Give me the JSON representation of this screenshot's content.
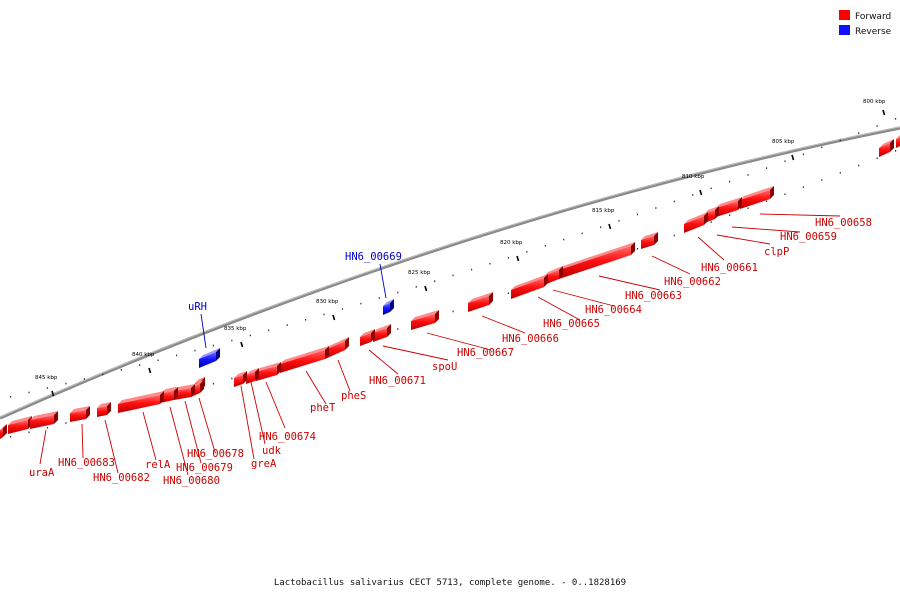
{
  "legend": {
    "forward_label": "Forward",
    "reverse_label": "Reverse",
    "forward_color": "#ff0000",
    "reverse_color": "#1010ff"
  },
  "caption": "Lactobacillus salivarius CECT 5713, complete genome. - 0..1828169",
  "ticks": [
    {
      "kbp": 800,
      "label": "800 kbp"
    },
    {
      "kbp": 805,
      "label": "805 kbp"
    },
    {
      "kbp": 810,
      "label": "810 kbp"
    },
    {
      "kbp": 815,
      "label": "815 kbp"
    },
    {
      "kbp": 820,
      "label": "820 kbp"
    },
    {
      "kbp": 825,
      "label": "825 kbp"
    },
    {
      "kbp": 830,
      "label": "830 kbp"
    },
    {
      "kbp": 835,
      "label": "835 kbp"
    },
    {
      "kbp": 840,
      "label": "840 kbp"
    },
    {
      "kbp": 845,
      "label": "845 kbp"
    }
  ],
  "genes": [
    {
      "name": "HN6_00658",
      "strand": "forward"
    },
    {
      "name": "HN6_00659",
      "strand": "forward"
    },
    {
      "name": "clpP",
      "strand": "forward"
    },
    {
      "name": "HN6_00661",
      "strand": "forward"
    },
    {
      "name": "HN6_00662",
      "strand": "forward"
    },
    {
      "name": "HN6_00663",
      "strand": "forward"
    },
    {
      "name": "HN6_00664",
      "strand": "forward"
    },
    {
      "name": "HN6_00665",
      "strand": "forward"
    },
    {
      "name": "HN6_00666",
      "strand": "forward"
    },
    {
      "name": "HN6_00667",
      "strand": "forward"
    },
    {
      "name": "spoU",
      "strand": "forward"
    },
    {
      "name": "HN6_00669",
      "strand": "reverse"
    },
    {
      "name": "HN6_00671",
      "strand": "forward"
    },
    {
      "name": "pheS",
      "strand": "forward"
    },
    {
      "name": "pheT",
      "strand": "forward"
    },
    {
      "name": "HN6_00674",
      "strand": "forward"
    },
    {
      "name": "udk",
      "strand": "forward"
    },
    {
      "name": "greA",
      "strand": "forward"
    },
    {
      "name": "HN6_00678",
      "strand": "forward"
    },
    {
      "name": "HN6_00679",
      "strand": "forward"
    },
    {
      "name": "HN6_00680",
      "strand": "forward"
    },
    {
      "name": "relA",
      "strand": "forward"
    },
    {
      "name": "HN6_00682",
      "strand": "forward"
    },
    {
      "name": "HN6_00683",
      "strand": "forward"
    },
    {
      "name": "uraA",
      "strand": "forward"
    },
    {
      "name": "uRH",
      "strand": "reverse"
    }
  ]
}
